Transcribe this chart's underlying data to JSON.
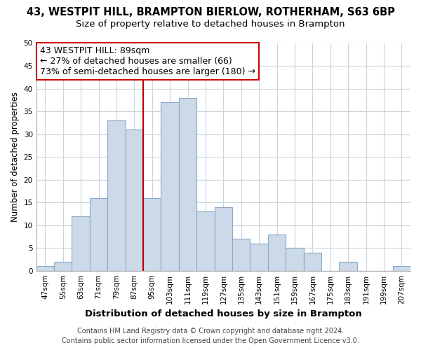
{
  "title": "43, WESTPIT HILL, BRAMPTON BIERLOW, ROTHERHAM, S63 6BP",
  "subtitle": "Size of property relative to detached houses in Brampton",
  "xlabel": "Distribution of detached houses by size in Brampton",
  "ylabel": "Number of detached properties",
  "bar_labels": [
    "47sqm",
    "55sqm",
    "63sqm",
    "71sqm",
    "79sqm",
    "87sqm",
    "95sqm",
    "103sqm",
    "111sqm",
    "119sqm",
    "127sqm",
    "135sqm",
    "143sqm",
    "151sqm",
    "159sqm",
    "167sqm",
    "175sqm",
    "183sqm",
    "191sqm",
    "199sqm",
    "207sqm"
  ],
  "bar_values": [
    1,
    2,
    12,
    16,
    33,
    31,
    16,
    37,
    38,
    13,
    14,
    7,
    6,
    8,
    5,
    4,
    0,
    2,
    0,
    0,
    1
  ],
  "bar_color": "#ccd9e8",
  "bar_edge_color": "#8aaac8",
  "vline_x": 91,
  "vline_color": "#bb0000",
  "annotation_line1": "43 WESTPIT HILL: 89sqm",
  "annotation_line2": "← 27% of detached houses are smaller (66)",
  "annotation_line3": "73% of semi-detached houses are larger (180) →",
  "annotation_box_color": "#ffffff",
  "annotation_box_edge": "#cc0000",
  "ylim": [
    0,
    50
  ],
  "yticks": [
    0,
    5,
    10,
    15,
    20,
    25,
    30,
    35,
    40,
    45,
    50
  ],
  "footer_line1": "Contains HM Land Registry data © Crown copyright and database right 2024.",
  "footer_line2": "Contains public sector information licensed under the Open Government Licence v3.0.",
  "bg_color": "#ffffff",
  "grid_color": "#c8d4de",
  "title_fontsize": 10.5,
  "subtitle_fontsize": 9.5,
  "xlabel_fontsize": 9.5,
  "ylabel_fontsize": 8.5,
  "tick_fontsize": 7.5,
  "annotation_fontsize": 9,
  "footer_fontsize": 7
}
